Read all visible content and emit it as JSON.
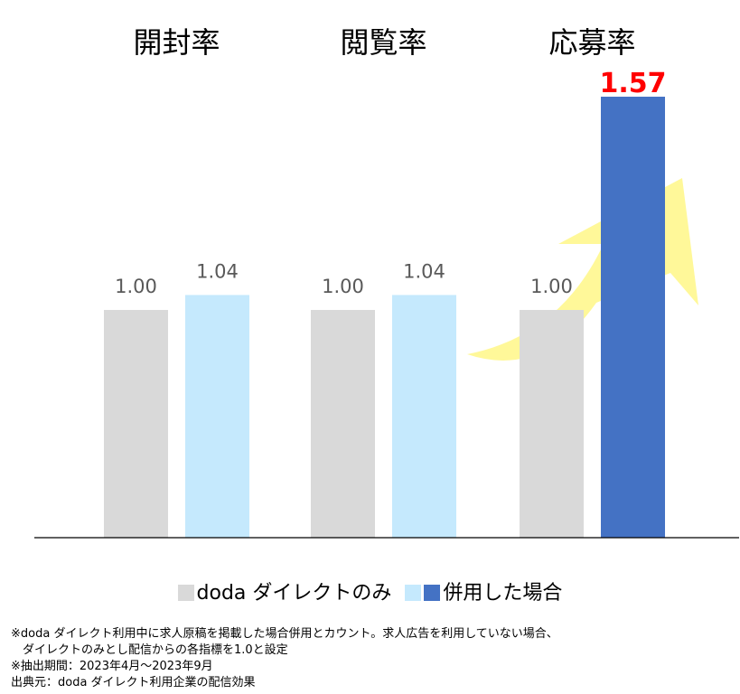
{
  "chart_data": {
    "type": "bar",
    "categories": [
      "開封率",
      "閲覧率",
      "応募率"
    ],
    "series": [
      {
        "name": "doda ダイレクトのみ",
        "values": [
          1.0,
          1.0,
          1.0
        ],
        "color": "#d9d9d9"
      },
      {
        "name": "併用した場合",
        "values": [
          1.04,
          1.04,
          1.57
        ],
        "colors": [
          "#c5e9fd",
          "#c5e9fd",
          "#4472c4"
        ]
      }
    ],
    "data_labels": [
      "1.00",
      "1.04",
      "1.00",
      "1.04",
      "1.00",
      "1.57"
    ],
    "highlight_label_color": "#ff0000",
    "arrow_color": "#fff899",
    "grid": false,
    "legend_position": "bottom"
  },
  "legend": {
    "item1": "doda ダイレクトのみ",
    "item2": "併用した場合",
    "colors": [
      "#d9d9d9",
      "#c5e9fd",
      "#4472c4"
    ]
  },
  "notes": [
    "※doda ダイレクト利用中に求人原稿を掲載した場合併用とカウント。求人広告を利用していない場合、",
    "　ダイレクトのみとし配信からの各指標を1.0と設定",
    "※抽出期間：2023年4月～2023年9月",
    "出典元：doda ダイレクト利用企業の配信効果"
  ]
}
